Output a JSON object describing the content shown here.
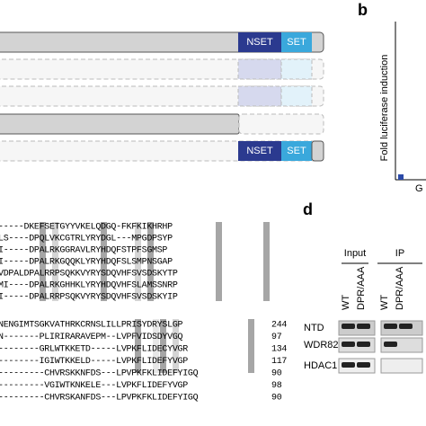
{
  "panels": {
    "b": "b",
    "d": "d"
  },
  "domains": {
    "row1": {
      "nset": "NSET",
      "set": "SET"
    },
    "row5": {
      "nset": "NSET",
      "set": "SET"
    }
  },
  "luciferase": {
    "ylabel": "Fold luciferase induction",
    "xlabel": "G"
  },
  "alignment_top": [
    "-----DKEFSETGYYVKELQDGQ-FKFKIKHRHP",
    "LS----DPQLVKCGTRLYRYDGL---MPGDPSYP",
    "I-----DPALRKGGRAVLRYHDQFSTPFSGMSP",
    "I-----DPALRKGQQKLYRYHDQFSLSMPNSGAP",
    "VDPALDPALRRPSQKKVYRYSDQVHFSVSDSKYTP",
    "MI----DPALRKGHHKLYRYHDQVHFSLAMSSNRP",
    "I-----DPALRRPSQKVYRYSDQVHFSVSDSKYIP"
  ],
  "alignment_bottom": {
    "seqs": [
      "NENGIMTSGKVATHRKCRNSLILLPRISYDRYSLGP",
      "N-------PLIRIRARAVEPM--LVPFVIDSDYVGQ",
      "--------GRLWTKKETD-----LVPKFLIDECYVGR",
      "--------IGIWTKKELD-----LVPKFLIDEFYVGP",
      "---------CHVRSKKNFDS---LPVPKFKLIDEFYIGQ",
      "---------VGIWTKNKELE---LVPKFLIDEFYVGP",
      "---------CHVRSKANFDS---LPVPKFKLIDEFYIGQ"
    ],
    "ends": [
      "244",
      "97",
      "134",
      "117",
      "90",
      "98",
      "90"
    ]
  },
  "blot": {
    "groups": [
      "Input",
      "IP"
    ],
    "lanes": [
      "WT",
      "DPR/AAA",
      "WT",
      "DPR/AAA"
    ],
    "rows": [
      "NTD",
      "WDR82",
      "HDAC1"
    ]
  }
}
